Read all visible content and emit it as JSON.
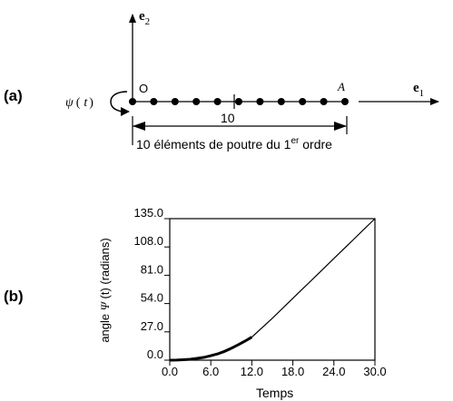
{
  "panel_a": {
    "label": "(a)",
    "e2": {
      "main": "e",
      "sub": "2"
    },
    "e1": {
      "main": "e",
      "sub": "1"
    },
    "origin": "O",
    "end_point": "A",
    "psi": {
      "sym": "ψ",
      "open": "(",
      "var": "t",
      "close": ")"
    },
    "length": "10",
    "caption": {
      "before": "10 éléments de poutre du 1",
      "sup": "er",
      "after": " ordre"
    },
    "node_count": 11
  },
  "panel_b": {
    "label": "(b)"
  },
  "chart_data": {
    "type": "line",
    "title": "",
    "xlabel": "Temps",
    "ylabel": {
      "before": "angle ",
      "sym": "Ψ",
      "after": " (t) (radians)"
    },
    "xlim": [
      0,
      30
    ],
    "ylim": [
      0,
      135
    ],
    "x_ticks": [
      "0.0",
      "6.0",
      "12.0",
      "18.0",
      "24.0",
      "30.0"
    ],
    "y_ticks": [
      "0.0",
      "27.0",
      "54.0",
      "81.0",
      "108.0",
      "135.0"
    ],
    "series": [
      {
        "x": [
          0,
          1,
          2,
          3,
          4,
          5,
          6,
          7,
          8,
          9,
          10,
          11,
          12,
          15,
          18,
          21,
          24,
          27,
          30
        ],
        "y": [
          0,
          0.1,
          0.4,
          0.9,
          1.7,
          2.7,
          4.2,
          6.0,
          8.4,
          11.3,
          14.6,
          18.2,
          22.0,
          40.0,
          59.0,
          78.0,
          97.0,
          116.0,
          135.0
        ]
      }
    ],
    "grid": false,
    "legend": "none"
  }
}
